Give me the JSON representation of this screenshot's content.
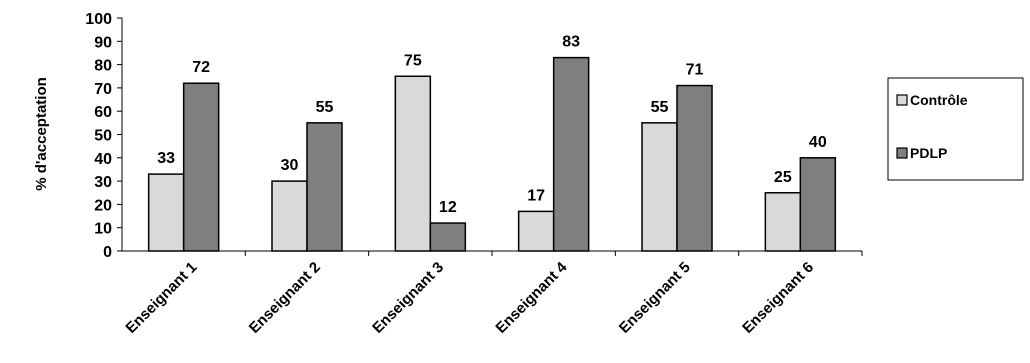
{
  "chart_data": {
    "type": "bar",
    "title": "",
    "xlabel": "",
    "ylabel": "% d'acceptation",
    "ylim": [
      0,
      100
    ],
    "yticks": [
      0,
      10,
      20,
      30,
      40,
      50,
      60,
      70,
      80,
      90,
      100
    ],
    "grid": false,
    "legend_position": "right",
    "categories": [
      "Enseignant 1",
      "Enseignant 2",
      "Enseignant 3",
      "Enseignant 4",
      "Enseignant 5",
      "Enseignant 6"
    ],
    "series": [
      {
        "name": "Contrôle",
        "color": "#d9d9d9",
        "values": [
          33,
          30,
          75,
          17,
          55,
          25
        ]
      },
      {
        "name": "PDLP",
        "color": "#7f7f7f",
        "values": [
          72,
          55,
          12,
          83,
          71,
          40
        ]
      }
    ]
  }
}
